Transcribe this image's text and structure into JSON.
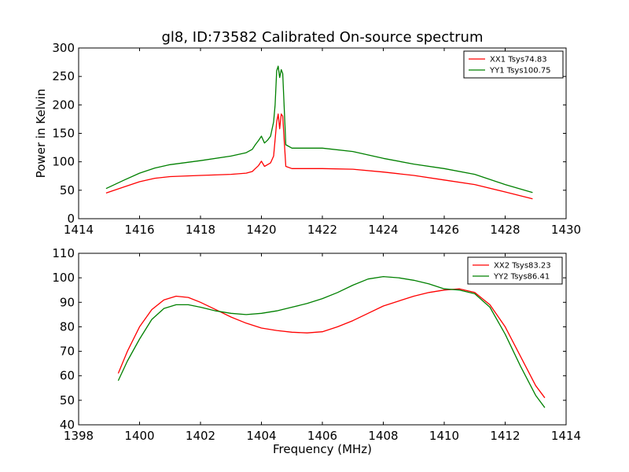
{
  "title": "gl8, ID:73582 Calibrated On-source spectrum",
  "colors": {
    "red": "#ff0000",
    "green": "#008000"
  },
  "chart_data": [
    {
      "type": "line",
      "ylabel": "Power in Kelvin",
      "xlabel": "",
      "xlim": [
        1414,
        1430
      ],
      "ylim": [
        0,
        300
      ],
      "xticks": [
        "1414",
        "1416",
        "1418",
        "1420",
        "1422",
        "1424",
        "1426",
        "1428",
        "1430"
      ],
      "yticks": [
        "0",
        "50",
        "100",
        "150",
        "200",
        "250",
        "300"
      ],
      "legend_position": "top-right",
      "series": [
        {
          "name": "XX1 Tsys74.83",
          "color": "#ff0000",
          "x": [
            1414.9,
            1415.5,
            1416.0,
            1416.5,
            1417.0,
            1418.0,
            1419.0,
            1419.5,
            1419.7,
            1419.8,
            1419.9,
            1420.0,
            1420.1,
            1420.2,
            1420.3,
            1420.4,
            1420.5,
            1420.55,
            1420.6,
            1420.65,
            1420.7,
            1420.8,
            1421.0,
            1422.0,
            1423.0,
            1424.0,
            1425.0,
            1426.0,
            1427.0,
            1428.0,
            1428.9
          ],
          "y": [
            45,
            56,
            65,
            71,
            74,
            76,
            78,
            80,
            83,
            88,
            93,
            101,
            92,
            95,
            98,
            110,
            170,
            184,
            158,
            184,
            180,
            92,
            88,
            88,
            87,
            82,
            76,
            68,
            60,
            47,
            35
          ]
        },
        {
          "name": "YY1 Tsys100.75",
          "color": "#008000",
          "x": [
            1414.9,
            1415.5,
            1416.0,
            1416.5,
            1417.0,
            1418.0,
            1419.0,
            1419.5,
            1419.7,
            1419.8,
            1419.9,
            1420.0,
            1420.1,
            1420.2,
            1420.3,
            1420.4,
            1420.45,
            1420.5,
            1420.55,
            1420.6,
            1420.65,
            1420.7,
            1420.8,
            1421.0,
            1422.0,
            1423.0,
            1424.0,
            1425.0,
            1426.0,
            1427.0,
            1428.0,
            1428.9
          ],
          "y": [
            53,
            68,
            80,
            89,
            95,
            102,
            110,
            116,
            122,
            130,
            137,
            145,
            133,
            138,
            145,
            170,
            200,
            260,
            268,
            248,
            262,
            255,
            130,
            124,
            124,
            118,
            106,
            96,
            88,
            78,
            60,
            46
          ]
        }
      ]
    },
    {
      "type": "line",
      "ylabel": "",
      "xlabel": "Frequency (MHz)",
      "xlim": [
        1398,
        1414
      ],
      "ylim": [
        40,
        110
      ],
      "xticks": [
        "1398",
        "1400",
        "1402",
        "1404",
        "1406",
        "1408",
        "1410",
        "1412",
        "1414"
      ],
      "yticks": [
        "40",
        "50",
        "60",
        "70",
        "80",
        "90",
        "100",
        "110"
      ],
      "legend_position": "top-right",
      "series": [
        {
          "name": "XX2 Tsys83.23",
          "color": "#ff0000",
          "x": [
            1399.3,
            1399.6,
            1400.0,
            1400.4,
            1400.8,
            1401.2,
            1401.6,
            1402.0,
            1402.5,
            1403.0,
            1403.5,
            1404.0,
            1404.5,
            1405.0,
            1405.5,
            1406.0,
            1406.5,
            1407.0,
            1407.5,
            1408.0,
            1408.5,
            1409.0,
            1409.5,
            1410.0,
            1410.5,
            1411.0,
            1411.5,
            1412.0,
            1412.5,
            1413.0,
            1413.3
          ],
          "y": [
            61,
            70,
            80,
            87,
            91,
            92.5,
            92,
            90,
            87,
            84,
            81.5,
            79.5,
            78.5,
            77.8,
            77.5,
            78,
            80,
            82.5,
            85.5,
            88.5,
            90.5,
            92.5,
            94,
            95,
            95.5,
            94,
            89,
            80,
            68,
            56,
            51
          ]
        },
        {
          "name": "YY2 Tsys86.41",
          "color": "#008000",
          "x": [
            1399.3,
            1399.6,
            1400.0,
            1400.4,
            1400.8,
            1401.2,
            1401.6,
            1402.0,
            1402.5,
            1403.0,
            1403.5,
            1404.0,
            1404.5,
            1405.0,
            1405.5,
            1406.0,
            1406.5,
            1407.0,
            1407.5,
            1408.0,
            1408.5,
            1409.0,
            1409.5,
            1410.0,
            1410.5,
            1411.0,
            1411.5,
            1412.0,
            1412.5,
            1413.0,
            1413.3
          ],
          "y": [
            58,
            66,
            75,
            83,
            87.5,
            89,
            89,
            88,
            86.5,
            85.5,
            85,
            85.5,
            86.5,
            88,
            89.5,
            91.5,
            94,
            97,
            99.5,
            100.5,
            100,
            99,
            97.5,
            95.5,
            95,
            93.5,
            88,
            77,
            64,
            52,
            47
          ]
        }
      ]
    }
  ]
}
